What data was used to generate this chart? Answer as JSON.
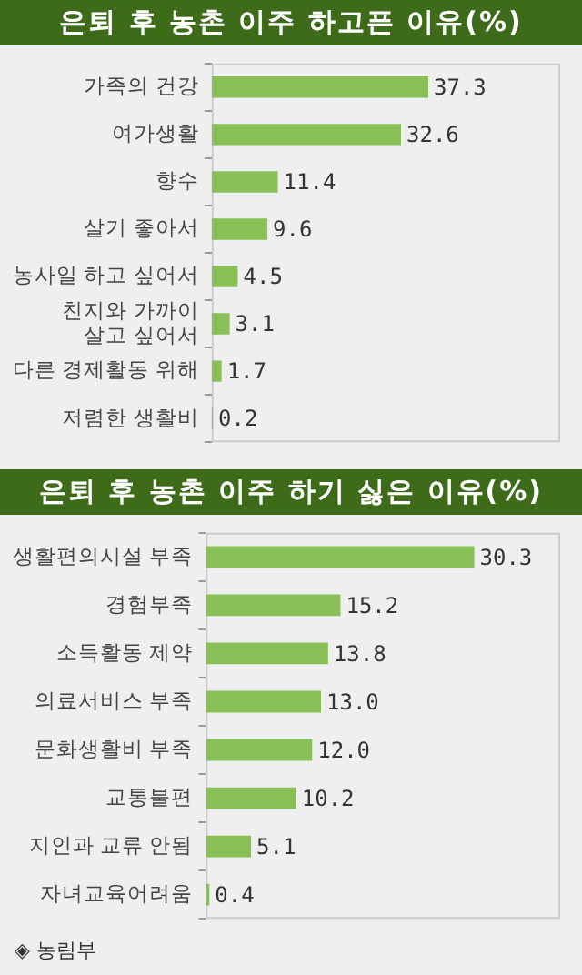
{
  "chart_data": [
    {
      "type": "bar",
      "orientation": "horizontal",
      "title": "은퇴 후 농촌 이주 하고픈 이유(%)",
      "categories": [
        "가족의 건강",
        "여가생활",
        "향수",
        "살기 좋아서",
        "농사일 하고 싶어서",
        "친지와 가까이\n살고 싶어서",
        "다른 경제활동 위해",
        "저렴한 생활비"
      ],
      "values": [
        37.3,
        32.6,
        11.4,
        9.6,
        4.5,
        3.1,
        1.7,
        0.2
      ],
      "color": "#88c057",
      "data_labels": true,
      "grid": false,
      "legend": false
    },
    {
      "type": "bar",
      "orientation": "horizontal",
      "title": "은퇴 후 농촌 이주 하기 싫은 이유(%)",
      "categories": [
        "생활편의시설 부족",
        "경험부족",
        "소득활동 제약",
        "의료서비스 부족",
        "문화생활비 부족",
        "교통불편",
        "지인과 교류 안됨",
        "자녀교육어려움"
      ],
      "values": [
        30.3,
        15.2,
        13.8,
        13.0,
        12.0,
        10.2,
        5.1,
        0.4
      ],
      "value_labels": [
        "30.3",
        "15.2",
        "13.8",
        "13.0",
        "12.0",
        "10.2",
        "5.1",
        "0.4"
      ],
      "color": "#88c057",
      "grid": false,
      "legend": false,
      "annotations": [
        "◈ 농림부"
      ]
    }
  ]
}
